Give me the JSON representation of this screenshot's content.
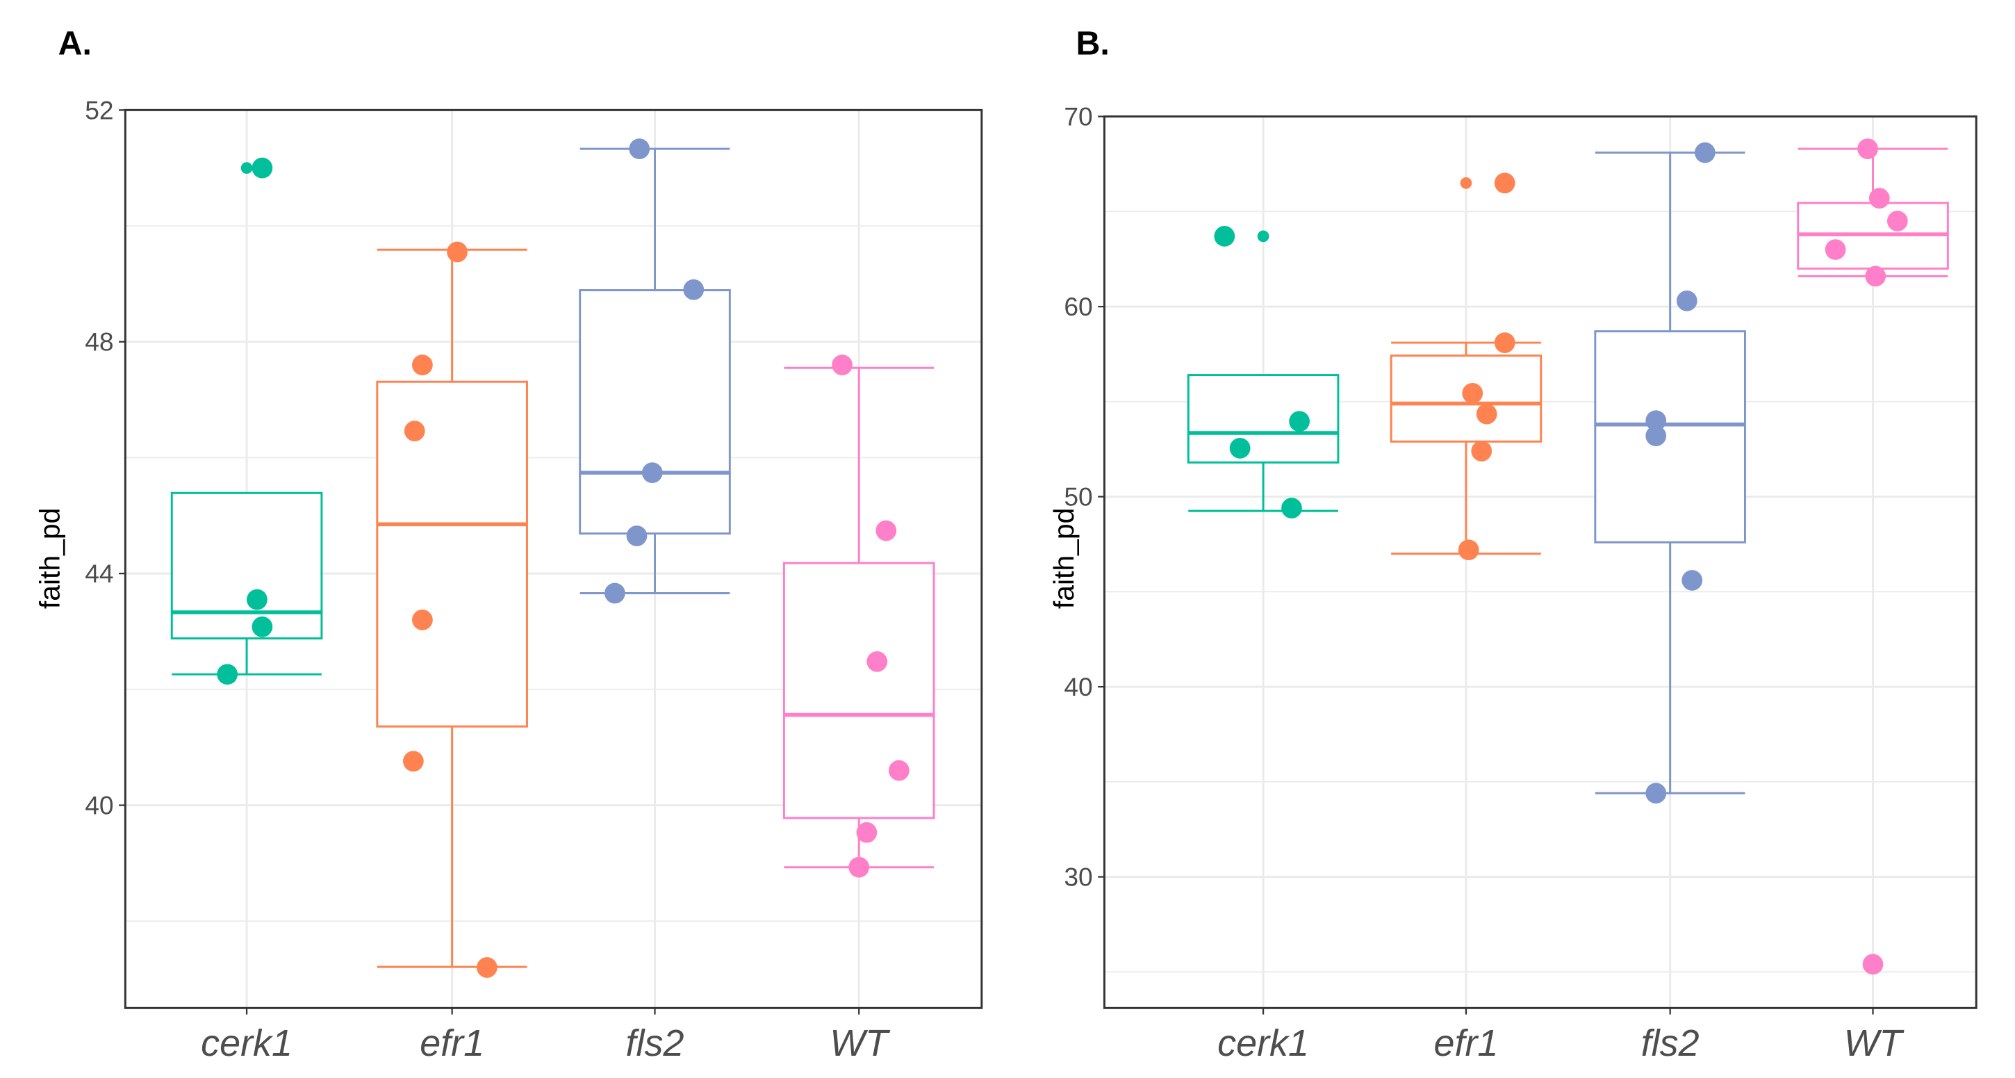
{
  "colors": {
    "cerk1": "#00BF9A",
    "efr1": "#FF8350",
    "fls2": "#7F96CC",
    "WT": "#FF7FC8",
    "grid": "#EBEBEB",
    "frame": "#333333"
  },
  "chart_data": [
    {
      "panel": "A.",
      "type": "box",
      "ylabel": "faith_pd",
      "xlabel": "",
      "categories": [
        "cerk1",
        "efr1",
        "fls2",
        "WT"
      ],
      "ylim": [
        36.5,
        52
      ],
      "yticks": [
        40,
        44,
        48,
        52
      ],
      "grid": true,
      "boxes": [
        {
          "name": "cerk1",
          "whisker_low": 42.26,
          "q1": 42.88,
          "median": 43.33,
          "q3": 45.39,
          "whisker_high": 45.39,
          "outliers": [
            51.0
          ],
          "points": [
            51.0,
            43.55,
            43.08,
            42.26
          ]
        },
        {
          "name": "efr1",
          "whisker_low": 37.21,
          "q1": 41.36,
          "median": 44.85,
          "q3": 47.31,
          "whisker_high": 49.59,
          "outliers": [],
          "points": [
            49.55,
            47.6,
            46.46,
            43.2,
            40.76,
            37.2
          ]
        },
        {
          "name": "fls2",
          "whisker_low": 43.66,
          "q1": 44.69,
          "median": 45.74,
          "q3": 48.89,
          "whisker_high": 51.33,
          "outliers": [],
          "points": [
            51.33,
            48.9,
            45.74,
            44.65,
            43.66
          ]
        },
        {
          "name": "WT",
          "whisker_low": 38.93,
          "q1": 39.78,
          "median": 41.56,
          "q3": 44.18,
          "whisker_high": 47.55,
          "outliers": [],
          "points": [
            47.6,
            44.74,
            42.48,
            40.6,
            39.53,
            38.93
          ]
        }
      ]
    },
    {
      "panel": "B.",
      "type": "box",
      "ylabel": "faith_pd",
      "xlabel": "",
      "categories": [
        "cerk1",
        "efr1",
        "fls2",
        "WT"
      ],
      "ylim": [
        23.1,
        70
      ],
      "yticks": [
        30,
        40,
        50,
        60,
        70
      ],
      "grid": true,
      "boxes": [
        {
          "name": "cerk1",
          "whisker_low": 49.25,
          "q1": 51.8,
          "median": 53.35,
          "q3": 56.4,
          "whisker_high": 56.4,
          "outliers": [
            63.7
          ],
          "points": [
            63.7,
            53.96,
            52.55,
            49.4
          ]
        },
        {
          "name": "efr1",
          "whisker_low": 47.0,
          "q1": 52.9,
          "median": 54.9,
          "q3": 57.42,
          "whisker_high": 58.1,
          "outliers": [
            66.5
          ],
          "points": [
            66.5,
            58.1,
            55.44,
            54.35,
            52.4,
            47.2
          ]
        },
        {
          "name": "fls2",
          "whisker_low": 34.4,
          "q1": 47.6,
          "median": 53.8,
          "q3": 58.7,
          "whisker_high": 68.1,
          "outliers": [],
          "points": [
            68.1,
            60.3,
            54.0,
            53.2,
            45.6,
            34.4
          ]
        },
        {
          "name": "WT",
          "whisker_low": 61.6,
          "q1": 62.0,
          "median": 63.8,
          "q3": 65.45,
          "whisker_high": 68.3,
          "outliers": [],
          "points": [
            68.3,
            65.7,
            64.5,
            63.0,
            61.6,
            25.4
          ]
        }
      ]
    }
  ]
}
